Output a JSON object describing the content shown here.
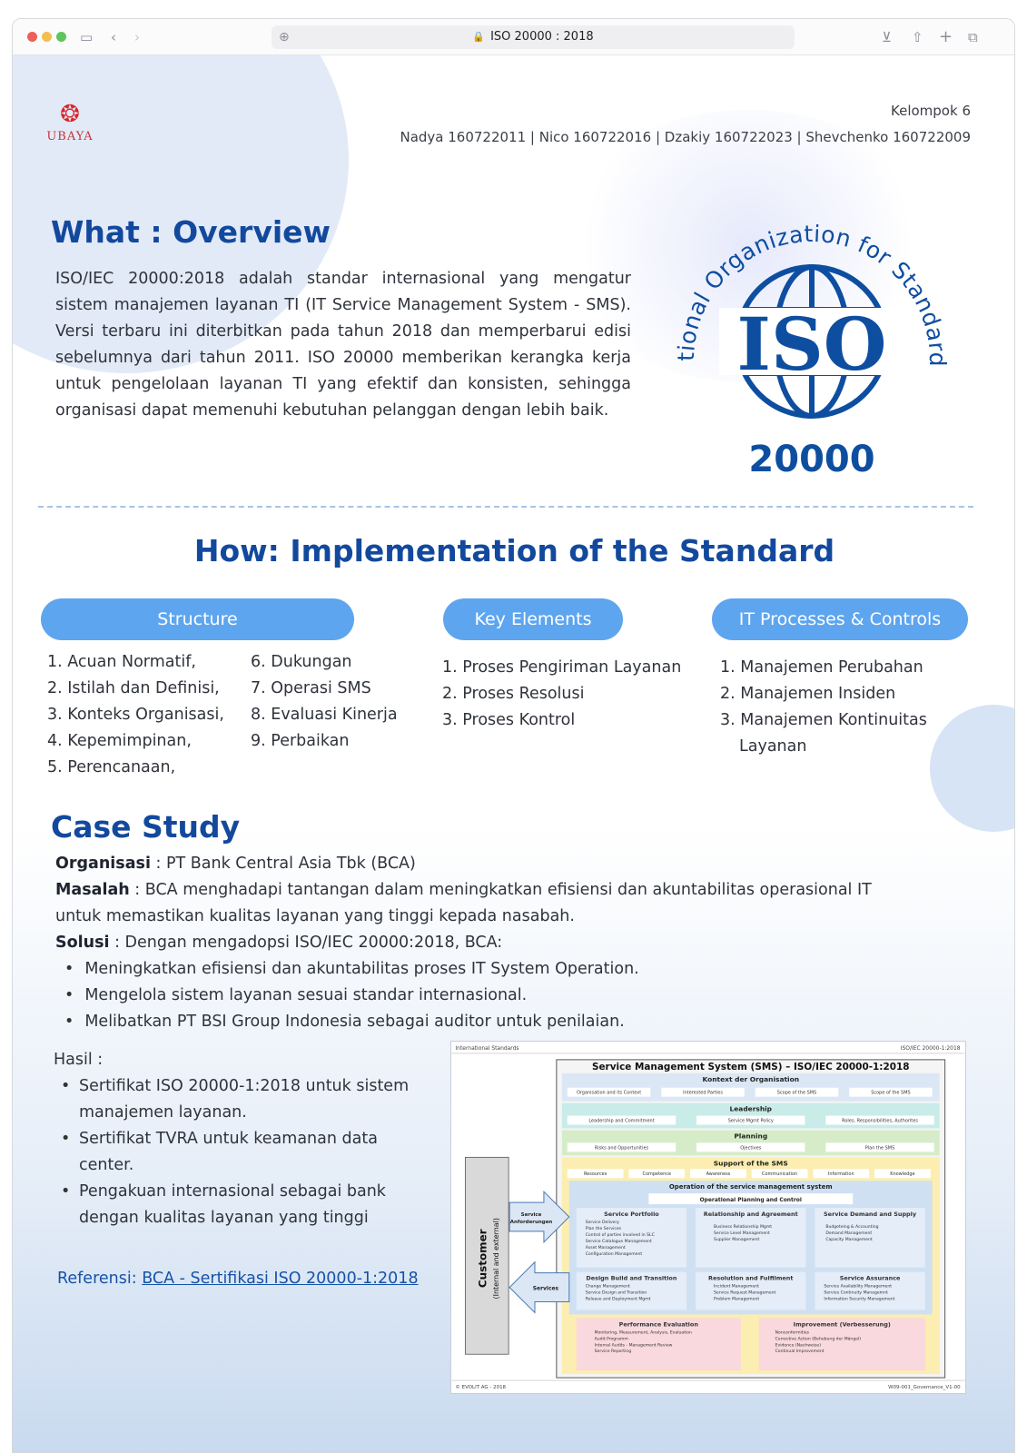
{
  "browser": {
    "url": "ISO 20000 : 2018"
  },
  "header": {
    "logo_text": "UBAYA",
    "group": "Kelompok 6",
    "members": "Nadya  160722011  |  Nico  160722016  |  Dzakiy 160722023  |  Shevchenko 160722009"
  },
  "overview": {
    "title": "What : Overview",
    "paragraph": "ISO/IEC 20000:2018 adalah standar internasional yang mengatur sistem manajemen layanan TI (IT Service Management System - SMS). Versi terbaru ini diterbitkan pada tahun 2018 dan memperbarui edisi sebelumnya dari tahun 2011. ISO 20000 memberikan kerangka kerja untuk pengelolaan layanan TI yang efektif dan konsisten, sehingga organisasi dapat memenuhi kebutuhan pelanggan dengan lebih baik.",
    "logo_ring_text": "International Organization for Standardization",
    "logo_word": "ISO",
    "logo_number": "20000"
  },
  "how": {
    "title": "How: Implementation of the Standard",
    "structure_label": "Structure",
    "key_label": "Key Elements",
    "itp_label": "IT Processes & Controls",
    "structure_col1": [
      "1. Acuan Normatif,",
      "2. Istilah dan Definisi,",
      "3. Konteks Organisasi,",
      "4. Kepemimpinan,",
      "5. Perencanaan,"
    ],
    "structure_col2": [
      "6. Dukungan",
      "7. Operasi SMS",
      "8. Evaluasi Kinerja",
      "9. Perbaikan"
    ],
    "key_items": [
      "1. Proses Pengiriman Layanan",
      "2. Proses Resolusi",
      "3. Proses Kontrol"
    ],
    "itp_items": [
      "1. Manajemen Perubahan",
      "2. Manajemen Insiden",
      "3. Manajemen  Kontinuitas",
      "Layanan"
    ]
  },
  "case": {
    "title": "Case Study",
    "org_label": "Organisasi",
    "org_value": " : PT Bank Central Asia Tbk (BCA)",
    "masalah_label": "Masalah",
    "masalah_value": " : BCA menghadapi tantangan dalam meningkatkan efisiensi dan akuntabilitas operasional IT untuk memastikan kualitas layanan yang tinggi kepada nasabah.",
    "solusi_label": "Solusi",
    "solusi_value": " : Dengan mengadopsi ISO/IEC 20000:2018, BCA:",
    "solusi_items": [
      "Meningkatkan efisiensi dan akuntabilitas proses IT System Operation.",
      "Mengelola sistem layanan sesuai standar internasional.",
      "Melibatkan PT BSI Group Indonesia sebagai auditor untuk penilaian."
    ],
    "hasil_label": "Hasil",
    "hasil_items": [
      "Sertifikat ISO 20000-1:2018 untuk sistem manajemen layanan.",
      "Sertifikat TVRA untuk keamanan data center.",
      "Pengakuan internasional sebagai bank dengan kualitas layanan yang tinggi"
    ],
    "ref_label": "Referensi: ",
    "ref_link": "BCA - Sertifikasi ISO 20000-1:2018"
  },
  "diagram": {
    "top_left": "International Standards",
    "top_right": "ISO/IEC 20000-1:2018",
    "title": "Service Management System (SMS) – ISO/IEC 20000-1:2018",
    "context": "Kontext der Organisation",
    "context_items": [
      "Organisation and its Context",
      "Interested Parties",
      "Scope of the SMS",
      "Scope of the SMS"
    ],
    "leadership": "Leadership",
    "leadership_items": [
      "Leadership and Commitment",
      "Service Mgmt Policy",
      "Roles, Responsibilities, Authorites"
    ],
    "planning": "Planning",
    "planning_items": [
      "Risks and Opportunities",
      "Ojectives",
      "Plan the SMS"
    ],
    "support": "Support of the SMS",
    "support_items": [
      "Resources",
      "Competence",
      "Awareness",
      "Communication",
      "Information",
      "Knowledge"
    ],
    "operation": "Operation of the service management system",
    "op_planning": "Operational Planning and Control",
    "portfolio": "Service Portfolio",
    "portfolio_items": [
      "Service Delivery",
      "Plan the Services",
      "Control of parties involved in SLC",
      "Service Catalogue Management",
      "Asset Management",
      "Configuration Management"
    ],
    "relationship": "Relationship and Agreement",
    "relationship_items": [
      "Business Relationship Mgmt",
      "Service Level Management",
      "Supplier Management"
    ],
    "demand": "Service Demand and Supply",
    "demand_items": [
      "Budgeteing & Accounting",
      "Demand Management",
      "Capacity Management"
    ],
    "design": "Design Build and Transition",
    "design_items": [
      "Change Management",
      "Service Design and Transition",
      "Release and Deployment Mgmt"
    ],
    "resolution": "Resolution and Fulfilment",
    "resolution_items": [
      "Incident Management",
      "Service Request Management",
      "Problem Management"
    ],
    "assurance": "Service Assurance",
    "assurance_items": [
      "Service Availability Management",
      "Service Continuity Managemnt",
      "Information Security Management"
    ],
    "performance": "Performance Evaluation",
    "performance_items": [
      "Monitoring, Measurement, Analysis, Evaluation",
      "Audit Programm",
      "Internal Audits  - Management Review",
      "Service Reporting"
    ],
    "improvement": "Improvement (Verbesserung)",
    "improvement_items": [
      "Nonconformities",
      "Corrective Action (Behebung der Mängel)",
      "Evidence (Nachweise)",
      "Continual Improvement"
    ],
    "customer": "Customer",
    "customer_sub": "(Internal and external)",
    "arrow_in": "Service Anforderungen",
    "arrow_out": "Services",
    "bottom_left": "© EVOLIT AG - 2018",
    "bottom_right": "W09-001_Governance_V1-00"
  }
}
